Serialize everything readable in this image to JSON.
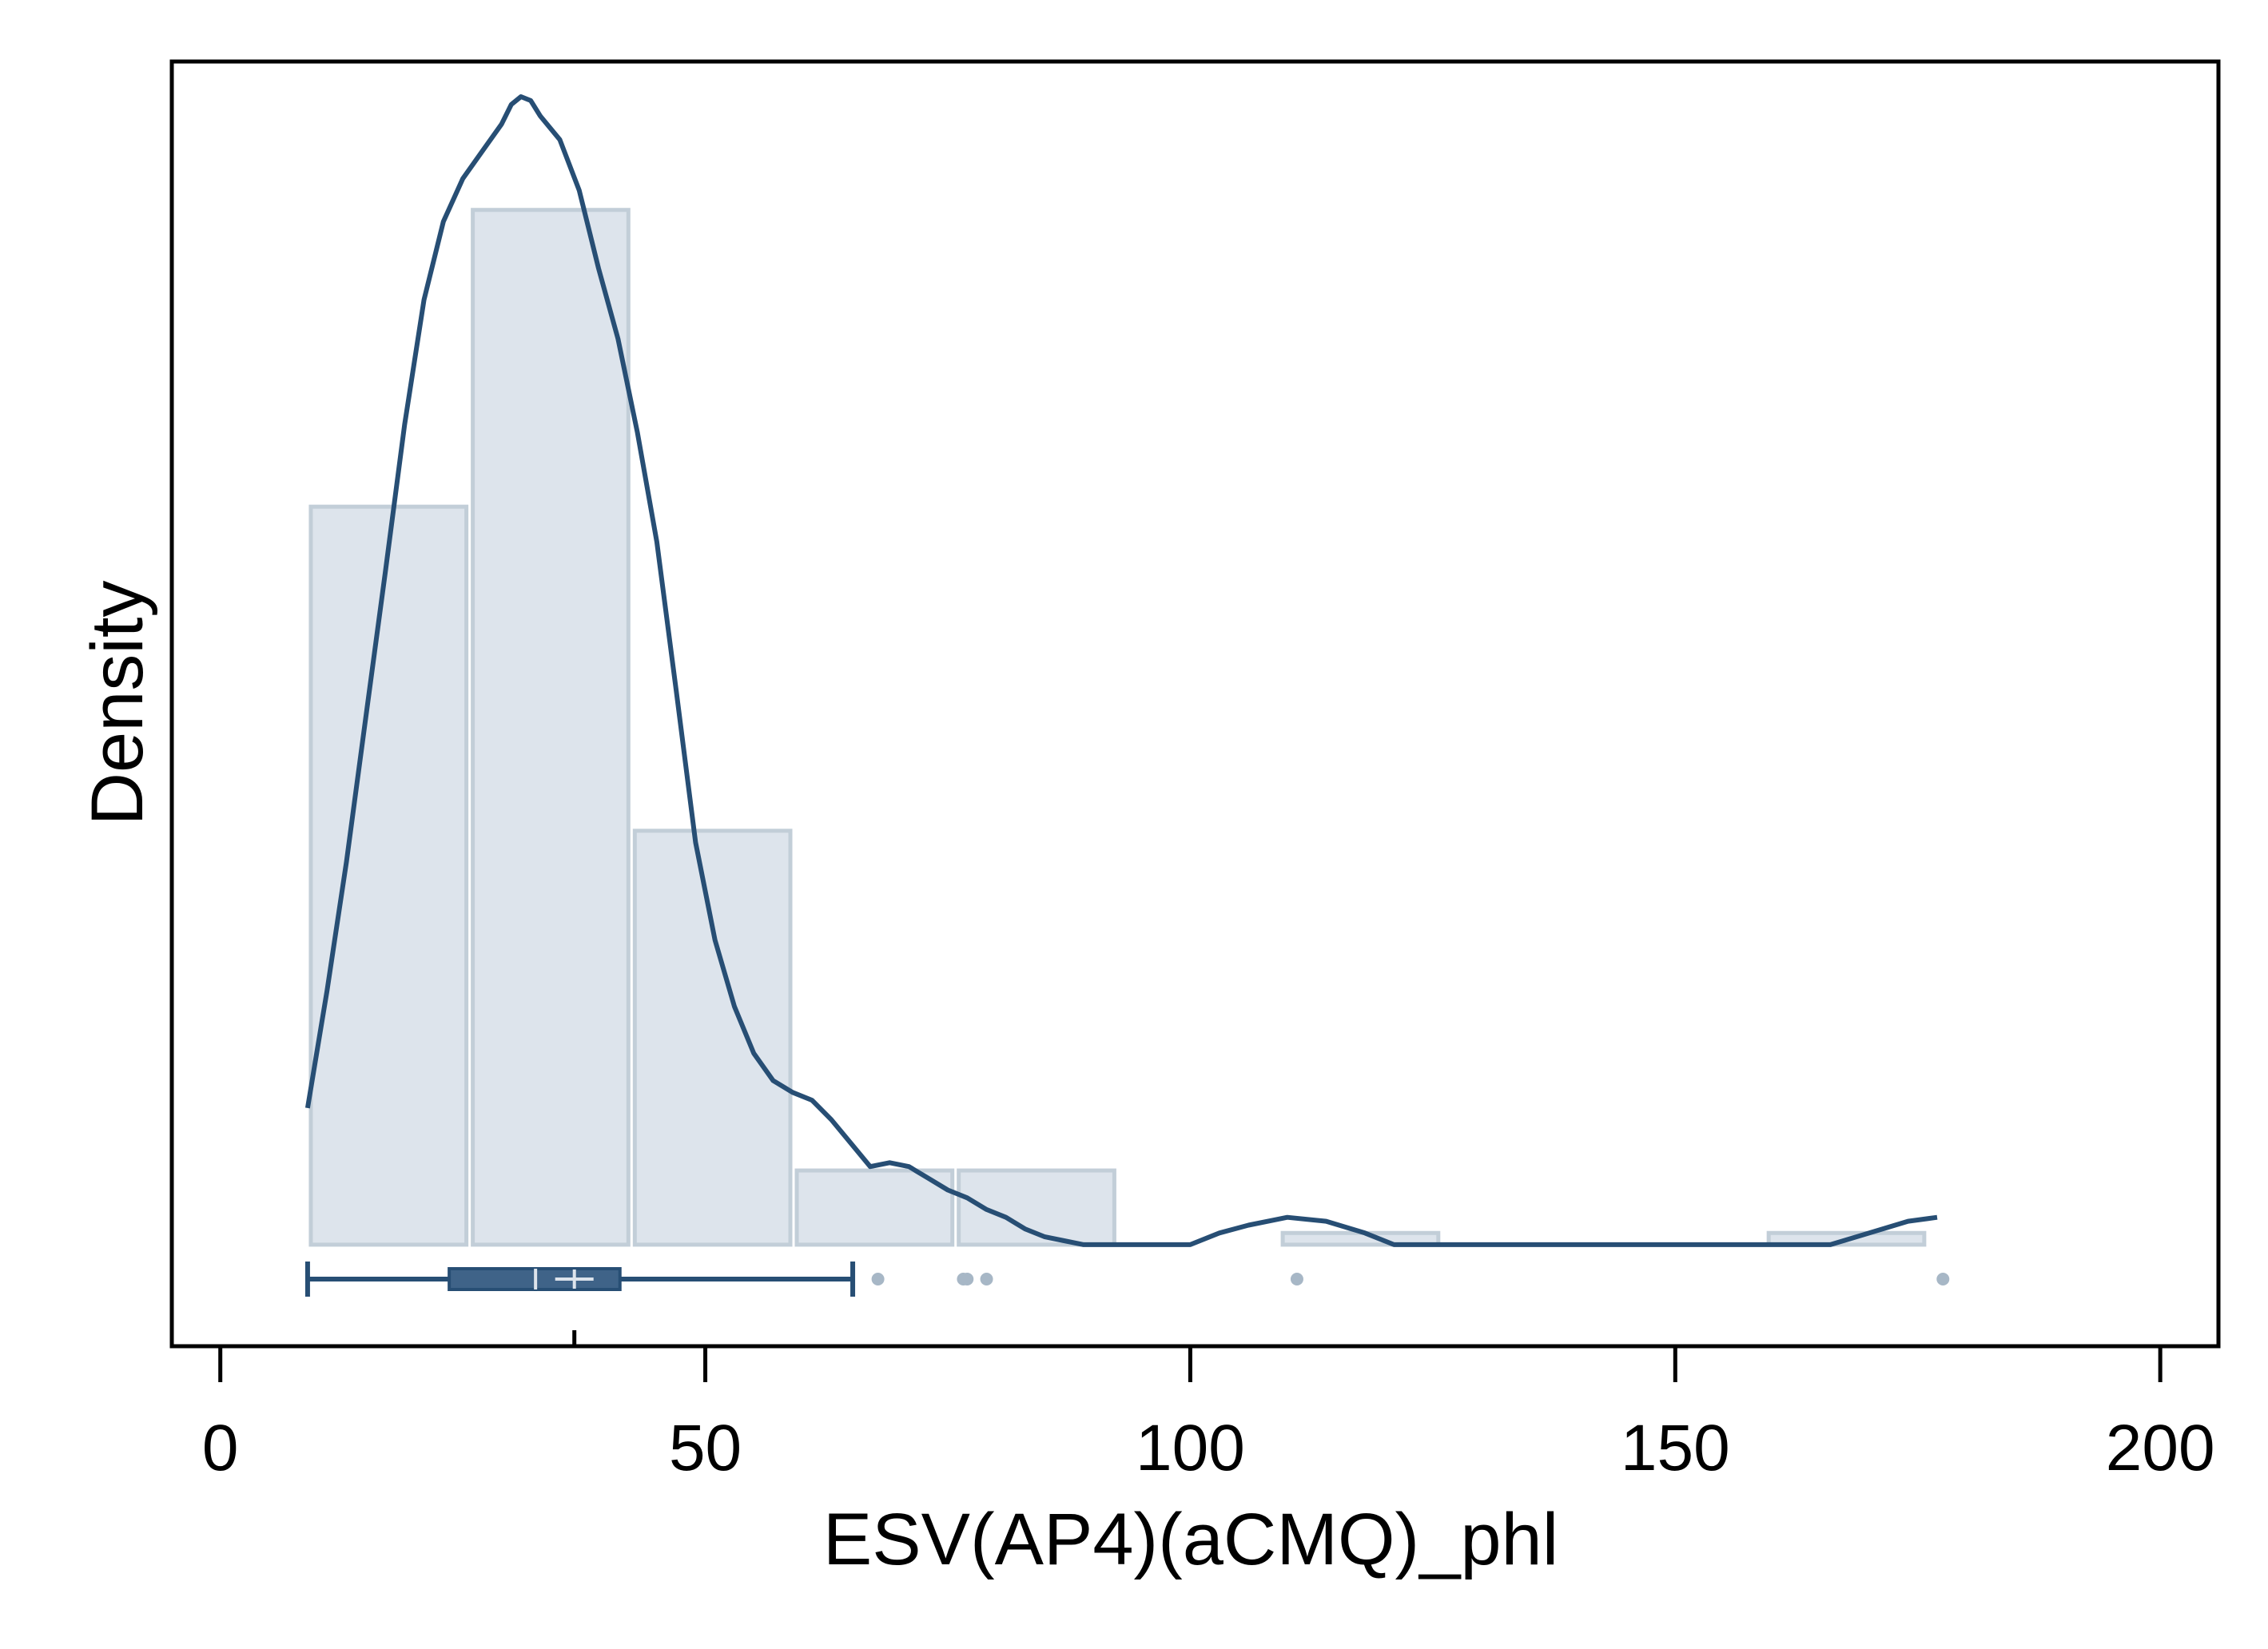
{
  "chart_data": {
    "type": "histogram",
    "xlabel": "ESV(AP4)(aCMQ)_phl",
    "ylabel": "Density",
    "xlim": [
      -5,
      206
    ],
    "x_ticks": [
      0,
      50,
      100,
      150,
      200
    ],
    "x_tick_labels": [
      "0",
      "50",
      "100",
      "150",
      "200"
    ],
    "histogram": {
      "bins": [
        {
          "start": 9,
          "end": 25.7,
          "density": 0.0189
        },
        {
          "start": 25.7,
          "end": 42.4,
          "density": 0.0265
        },
        {
          "start": 42.4,
          "end": 59.1,
          "density": 0.0106
        },
        {
          "start": 59.1,
          "end": 75.8,
          "density": 0.0019
        },
        {
          "start": 75.8,
          "end": 92.5,
          "density": 0.0019
        },
        {
          "start": 109.2,
          "end": 125.9,
          "density": 0.0003
        },
        {
          "start": 159.3,
          "end": 176,
          "density": 0.0003
        }
      ]
    },
    "density_curve": {
      "x": [
        9,
        11,
        13,
        15,
        17,
        19,
        21,
        23,
        25,
        27,
        29,
        30,
        31,
        32,
        33,
        35,
        37,
        39,
        41,
        43,
        45,
        47,
        49,
        51,
        53,
        55,
        57,
        59,
        61,
        63,
        65,
        67,
        69,
        71,
        73,
        75,
        77,
        79,
        81,
        83,
        85,
        87,
        89,
        100,
        103,
        106,
        110,
        114,
        118,
        121,
        166,
        170,
        174,
        177
      ],
      "y": [
        0.0035,
        0.0065,
        0.0098,
        0.0135,
        0.0172,
        0.021,
        0.0242,
        0.0262,
        0.0273,
        0.028,
        0.0287,
        0.0292,
        0.0294,
        0.0293,
        0.0289,
        0.0283,
        0.027,
        0.025,
        0.0232,
        0.0208,
        0.018,
        0.0142,
        0.0103,
        0.0078,
        0.0061,
        0.0049,
        0.0042,
        0.0039,
        0.0037,
        0.0032,
        0.0026,
        0.002,
        0.0021,
        0.002,
        0.0017,
        0.0014,
        0.0012,
        0.0009,
        0.0007,
        0.0004,
        0.0002,
        0.0001,
        0.0,
        0.0,
        0.0003,
        0.0005,
        0.0007,
        0.0006,
        0.0003,
        0.0,
        0.0,
        0.0003,
        0.0006,
        0.0007
      ]
    },
    "ylim": [
      -0.0026,
      0.0303
    ],
    "boxplot": {
      "whisker_low": 9,
      "q1": 23.6,
      "median": 32.5,
      "mean": 36.5,
      "q3": 41.2,
      "whisker_high": 65.2,
      "outliers": [
        67.8,
        76.6,
        77.0,
        79.0,
        111.0,
        177.6
      ]
    },
    "grid": false,
    "legend": "none"
  },
  "colors": {
    "bar_fill": "#dde4ec",
    "bar_stroke": "#c2ced8",
    "curve": "#274e74",
    "box_fill": "#3f6388",
    "outlier": "#a7b7c6",
    "frame": "#000000"
  }
}
